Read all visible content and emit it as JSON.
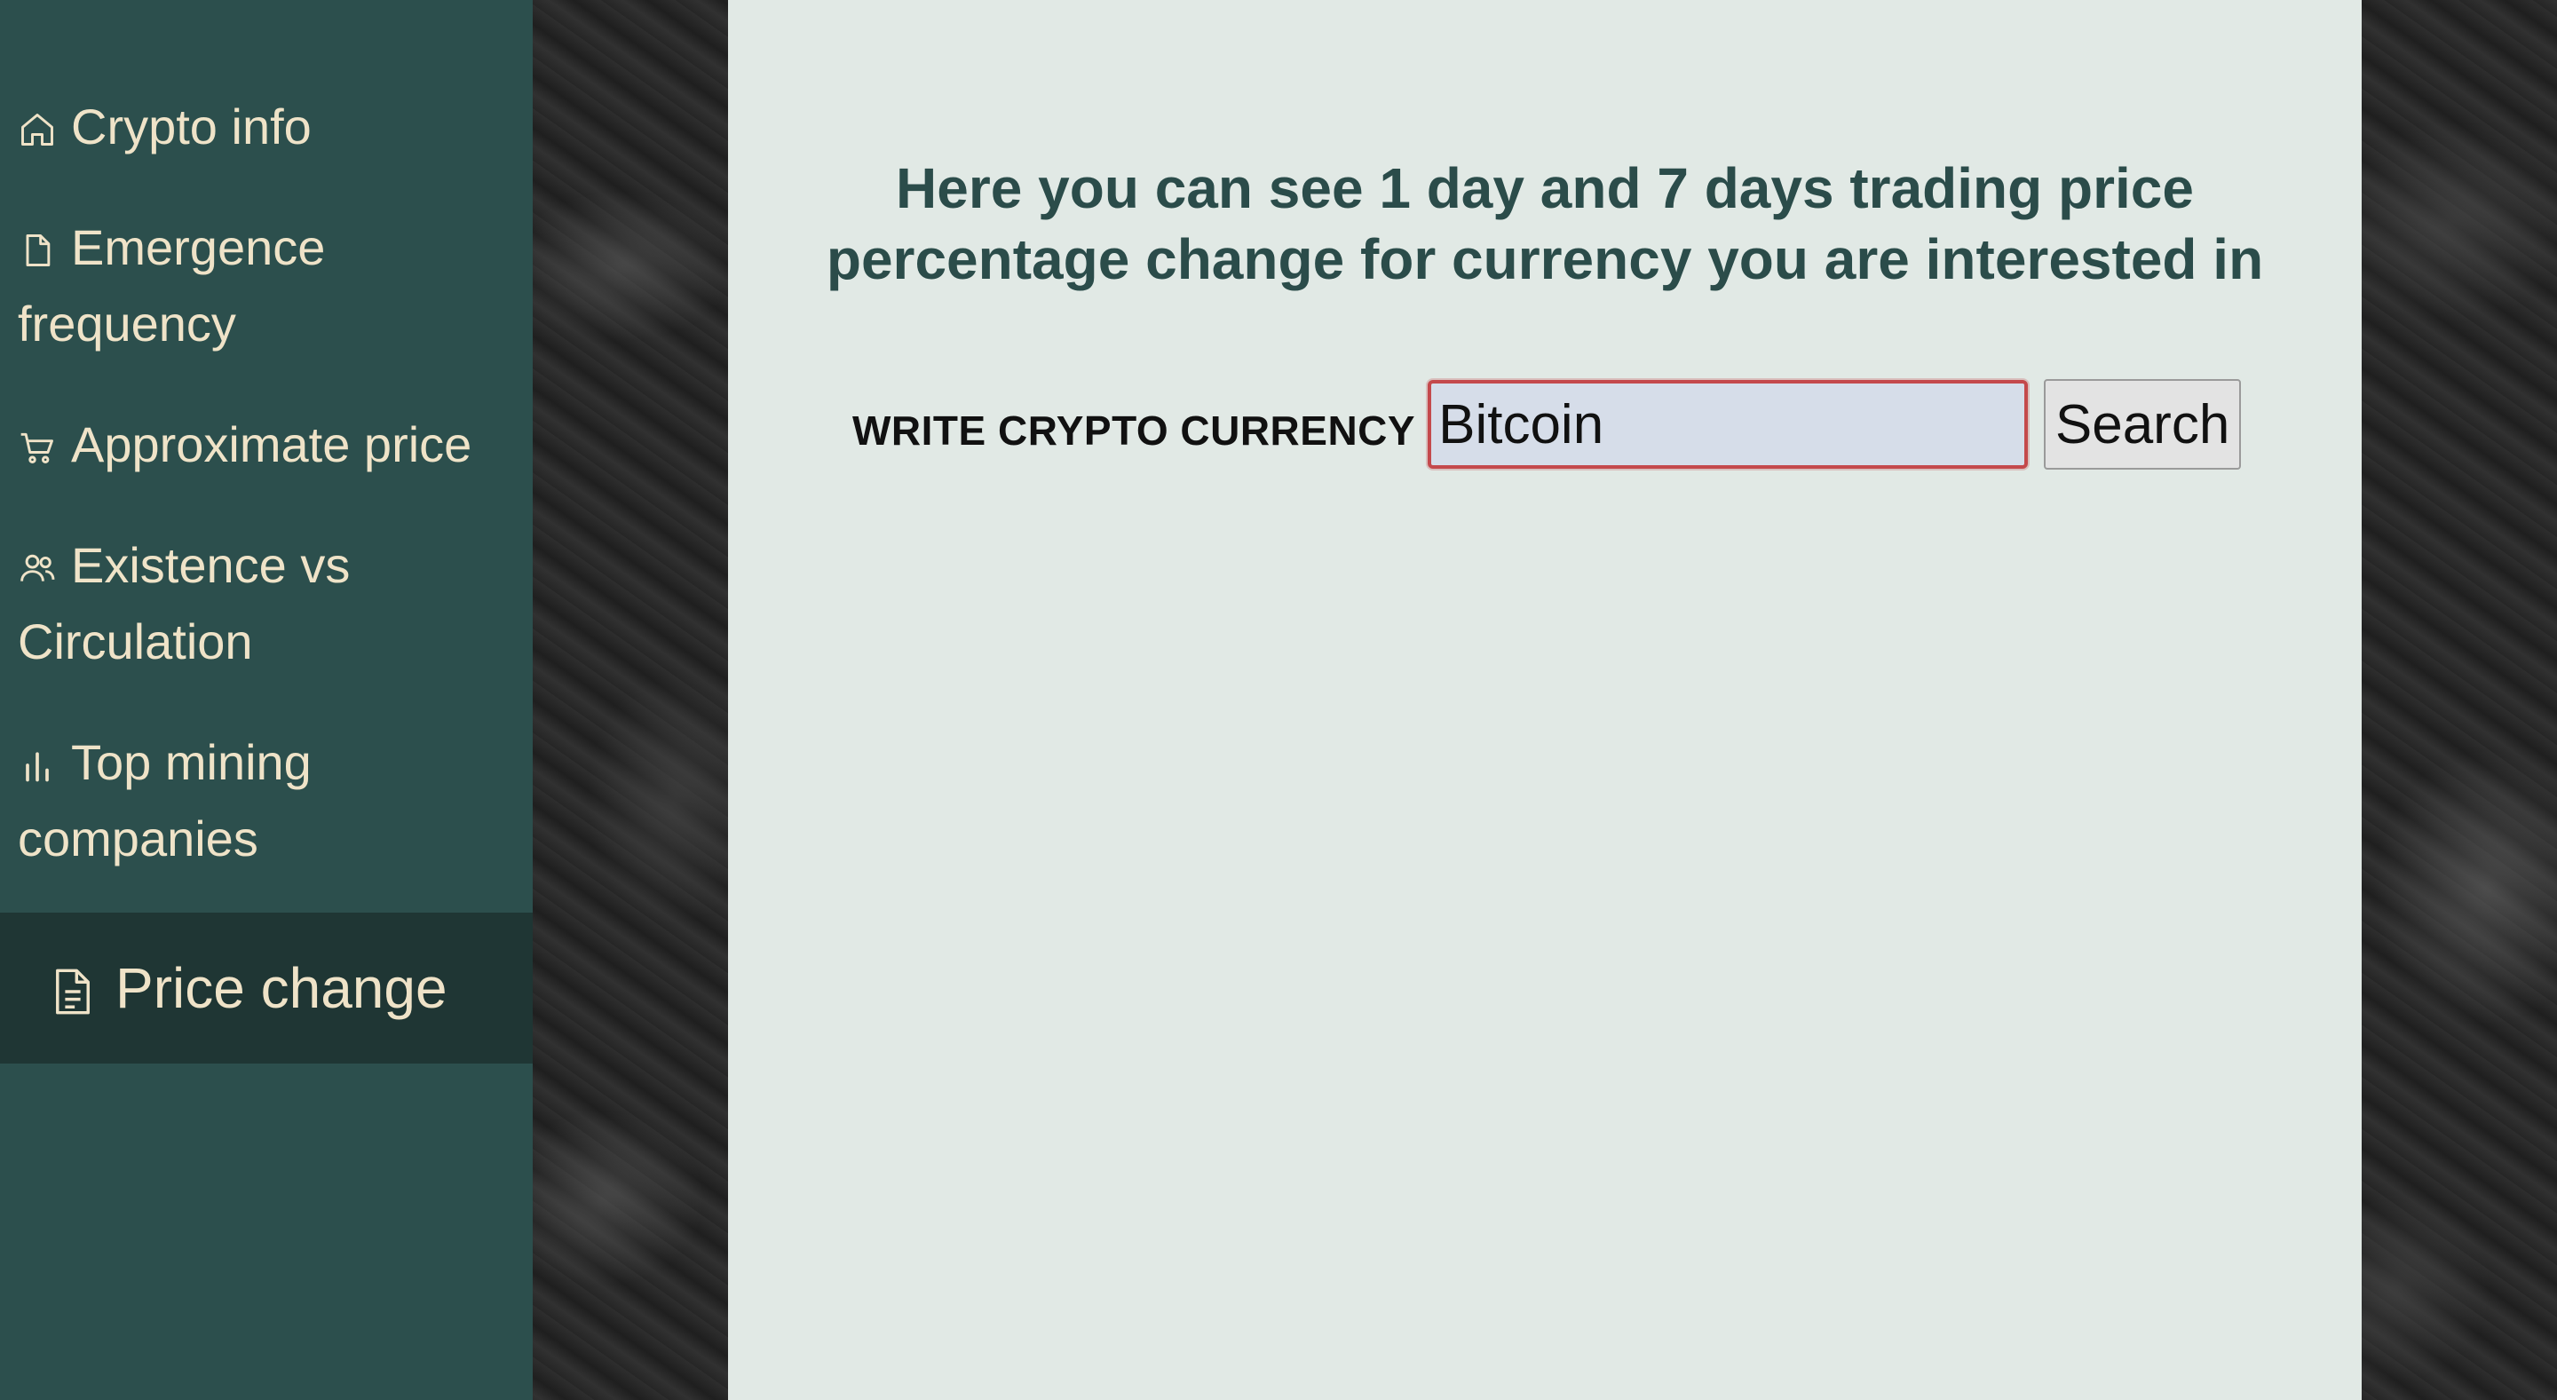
{
  "sidebar": {
    "items": [
      {
        "label": "Crypto info",
        "icon": "home-icon"
      },
      {
        "label": "Emergence frequency",
        "icon": "file-icon"
      },
      {
        "label": "Approximate price",
        "icon": "cart-icon"
      },
      {
        "label": "Existence vs Circulation",
        "icon": "users-icon"
      },
      {
        "label": "Top mining companies",
        "icon": "bar-chart-icon"
      },
      {
        "label": "Price change",
        "icon": "file-text-icon",
        "active": true
      }
    ]
  },
  "main": {
    "title": "Here you can see 1 day and 7 days trading price percentage change for currency you are interested in",
    "search": {
      "label": "WRITE CRYPTO CURRENCY",
      "value": "Bitcoin",
      "button_label": "Search"
    }
  },
  "colors": {
    "sidebar_bg": "#2c4f4d",
    "sidebar_active_bg": "#1f3634",
    "sidebar_text": "#efe3c8",
    "panel_bg": "#e1e9e5",
    "title_text": "#2b4c4a",
    "input_border": "#c4494c"
  }
}
